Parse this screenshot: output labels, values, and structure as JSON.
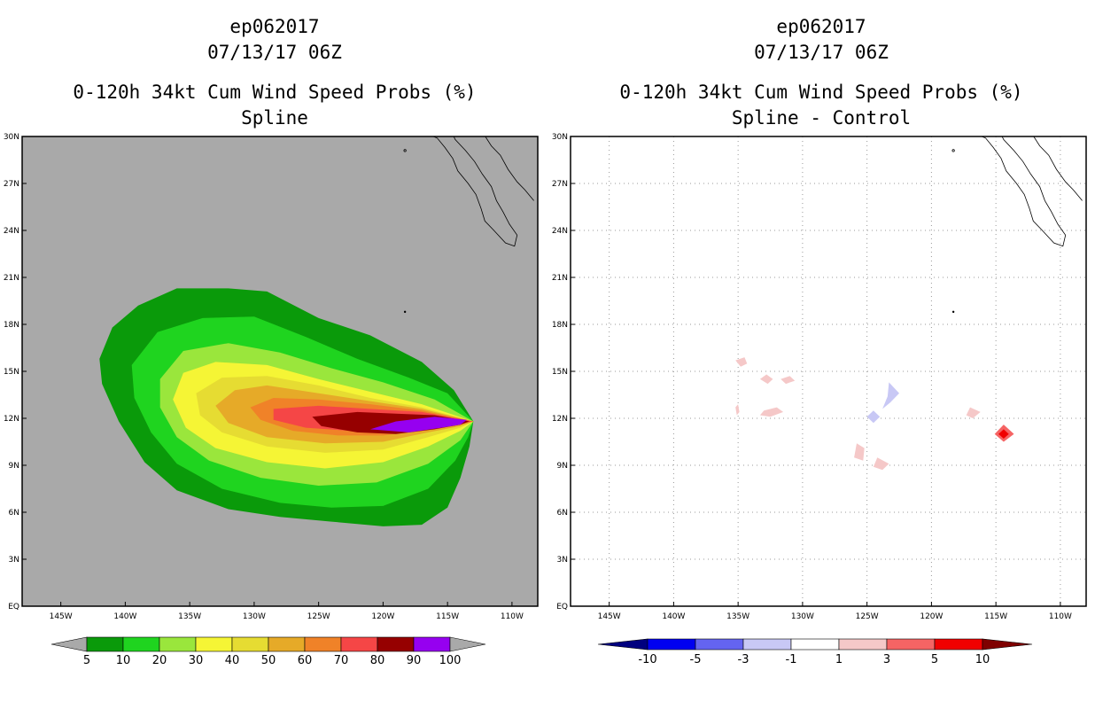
{
  "left_panel": {
    "title_line1": "ep062017",
    "title_line2": "07/13/17 06Z",
    "title_line3": "0-120h 34kt Cum Wind Speed Probs (%)",
    "title_line4": "Spline"
  },
  "right_panel": {
    "title_line1": "ep062017",
    "title_line2": "07/13/17 06Z",
    "title_line3": "0-120h 34kt Cum Wind Speed Probs (%)",
    "title_line4": "Spline - Control"
  },
  "chart_data": [
    {
      "type": "heatmap",
      "title": "0-120h 34kt Cum Wind Speed Probs (%) - Spline",
      "storm": "ep062017",
      "time": "07/13/17 06Z",
      "x_tick_labels": [
        "145W",
        "140W",
        "135W",
        "130W",
        "125W",
        "120W",
        "115W",
        "110W"
      ],
      "y_tick_labels": [
        "EQ",
        "3N",
        "6N",
        "9N",
        "12N",
        "15N",
        "18N",
        "21N",
        "24N",
        "27N",
        "30N"
      ],
      "xlim_deg_east": [
        -148,
        -108
      ],
      "ylim_deg_north": [
        0,
        30
      ],
      "grid": false,
      "background_color": "#a9a9a9",
      "levels": [
        5,
        10,
        20,
        30,
        40,
        50,
        60,
        70,
        80,
        90,
        100
      ],
      "level_labels": [
        "5",
        "10",
        "20",
        "30",
        "40",
        "50",
        "60",
        "70",
        "80",
        "90",
        "100"
      ],
      "colors": [
        "#0a9a0a",
        "#1fd41f",
        "#9ae63c",
        "#f5f535",
        "#e6dc32",
        "#e6aa28",
        "#f08228",
        "#f54646",
        "#960000",
        "#9600f0"
      ],
      "contours": [
        {
          "level": 5,
          "color": "#0a9a0a",
          "points": [
            [
              -113,
              11.8
            ],
            [
              -114.5,
              13.8
            ],
            [
              -117,
              15.6
            ],
            [
              -121,
              17.3
            ],
            [
              -125,
              18.4
            ],
            [
              -129,
              20.1
            ],
            [
              -132,
              20.3
            ],
            [
              -136,
              20.3
            ],
            [
              -139,
              19.2
            ],
            [
              -141,
              17.8
            ],
            [
              -142,
              15.8
            ],
            [
              -141.8,
              14.2
            ],
            [
              -140.5,
              11.8
            ],
            [
              -138.5,
              9.2
            ],
            [
              -136,
              7.4
            ],
            [
              -132,
              6.2
            ],
            [
              -128,
              5.7
            ],
            [
              -124,
              5.4
            ],
            [
              -120,
              5.1
            ],
            [
              -117,
              5.2
            ],
            [
              -115,
              6.3
            ],
            [
              -114,
              8.2
            ],
            [
              -113.3,
              10.2
            ]
          ]
        },
        {
          "level": 10,
          "color": "#1fd41f",
          "points": [
            [
              -113,
              11.8
            ],
            [
              -115,
              13.6
            ],
            [
              -118,
              14.6
            ],
            [
              -122,
              15.8
            ],
            [
              -126,
              17.2
            ],
            [
              -130,
              18.5
            ],
            [
              -134,
              18.4
            ],
            [
              -137.5,
              17.5
            ],
            [
              -139.5,
              15.4
            ],
            [
              -139.3,
              13.3
            ],
            [
              -138,
              11.1
            ],
            [
              -136,
              9.1
            ],
            [
              -132.5,
              7.5
            ],
            [
              -128,
              6.6
            ],
            [
              -124,
              6.3
            ],
            [
              -120,
              6.4
            ],
            [
              -116.5,
              7.5
            ],
            [
              -114.4,
              9.3
            ],
            [
              -113.4,
              10.8
            ]
          ]
        },
        {
          "level": 20,
          "color": "#9ae63c",
          "points": [
            [
              -113,
              11.8
            ],
            [
              -116,
              13.2
            ],
            [
              -120,
              14.3
            ],
            [
              -124,
              15.2
            ],
            [
              -128,
              16.2
            ],
            [
              -132,
              16.8
            ],
            [
              -135.5,
              16.3
            ],
            [
              -137.3,
              14.5
            ],
            [
              -137.3,
              12.7
            ],
            [
              -136,
              10.8
            ],
            [
              -133.5,
              9.3
            ],
            [
              -129.5,
              8.2
            ],
            [
              -125,
              7.7
            ],
            [
              -120.5,
              7.9
            ],
            [
              -116.5,
              9.1
            ],
            [
              -114,
              10.6
            ]
          ]
        },
        {
          "level": 30,
          "color": "#f5f535",
          "points": [
            [
              -113,
              11.8
            ],
            [
              -117,
              12.9
            ],
            [
              -121,
              13.7
            ],
            [
              -125,
              14.5
            ],
            [
              -129,
              15.4
            ],
            [
              -133,
              15.6
            ],
            [
              -135.5,
              14.9
            ],
            [
              -136.3,
              13.2
            ],
            [
              -135.3,
              11.4
            ],
            [
              -133,
              10.1
            ],
            [
              -129,
              9.2
            ],
            [
              -124.5,
              8.8
            ],
            [
              -120,
              9.2
            ],
            [
              -116.5,
              10.2
            ],
            [
              -114,
              11.2
            ]
          ]
        },
        {
          "level": 40,
          "color": "#e6dc32",
          "points": [
            [
              -113,
              11.8
            ],
            [
              -117,
              12.7
            ],
            [
              -121,
              13.3
            ],
            [
              -125,
              14.1
            ],
            [
              -129,
              14.7
            ],
            [
              -132.5,
              14.6
            ],
            [
              -134.5,
              13.6
            ],
            [
              -134.2,
              12.2
            ],
            [
              -132.5,
              11.1
            ],
            [
              -129,
              10.2
            ],
            [
              -124.5,
              9.8
            ],
            [
              -120,
              10
            ],
            [
              -116.5,
              10.8
            ],
            [
              -114,
              11.4
            ]
          ]
        },
        {
          "level": 50,
          "color": "#e6aa28",
          "points": [
            [
              -113,
              11.8
            ],
            [
              -117,
              12.6
            ],
            [
              -121,
              13.1
            ],
            [
              -125,
              13.6
            ],
            [
              -129,
              14.1
            ],
            [
              -131.5,
              13.8
            ],
            [
              -133,
              12.8
            ],
            [
              -132,
              11.7
            ],
            [
              -129,
              10.8
            ],
            [
              -124.5,
              10.4
            ],
            [
              -120,
              10.5
            ],
            [
              -116.5,
              11.1
            ],
            [
              -114,
              11.5
            ]
          ]
        },
        {
          "level": 60,
          "color": "#f08228",
          "points": [
            [
              -113,
              11.8
            ],
            [
              -117,
              12.5
            ],
            [
              -121,
              12.9
            ],
            [
              -125,
              13.2
            ],
            [
              -128.5,
              13.3
            ],
            [
              -130.3,
              12.7
            ],
            [
              -129.5,
              11.9
            ],
            [
              -127,
              11.2
            ],
            [
              -123.5,
              10.9
            ],
            [
              -120,
              10.9
            ],
            [
              -116.5,
              11.3
            ],
            [
              -114,
              11.6
            ]
          ]
        },
        {
          "level": 70,
          "color": "#f54646",
          "points": [
            [
              -113,
              11.8
            ],
            [
              -117,
              12.4
            ],
            [
              -121,
              12.6
            ],
            [
              -125,
              12.8
            ],
            [
              -128.5,
              12.6
            ],
            [
              -128.5,
              11.9
            ],
            [
              -126,
              11.4
            ],
            [
              -122.5,
              11.2
            ],
            [
              -119,
              11.2
            ],
            [
              -116,
              11.5
            ],
            [
              -114,
              11.7
            ]
          ]
        },
        {
          "level": 80,
          "color": "#960000",
          "points": [
            [
              -113.3,
              11.8
            ],
            [
              -116,
              12.2
            ],
            [
              -119,
              12.3
            ],
            [
              -122,
              12.4
            ],
            [
              -125.5,
              12.1
            ],
            [
              -124.8,
              11.5
            ],
            [
              -122,
              11.1
            ],
            [
              -119,
              11
            ],
            [
              -116,
              11.3
            ],
            [
              -114,
              11.6
            ]
          ]
        },
        {
          "level": 90,
          "color": "#9600f0",
          "points": [
            [
              -113.5,
              11.9
            ],
            [
              -116,
              12.1
            ],
            [
              -119,
              11.8
            ],
            [
              -121,
              11.3
            ],
            [
              -118,
              11.1
            ],
            [
              -115.5,
              11.4
            ],
            [
              -114,
              11.6
            ]
          ]
        }
      ]
    },
    {
      "type": "heatmap",
      "title": "0-120h 34kt Cum Wind Speed Probs (%) - Spline - Control",
      "storm": "ep062017",
      "time": "07/13/17 06Z",
      "x_tick_labels": [
        "145W",
        "140W",
        "135W",
        "130W",
        "125W",
        "120W",
        "115W",
        "110W"
      ],
      "y_tick_labels": [
        "EQ",
        "3N",
        "6N",
        "9N",
        "12N",
        "15N",
        "18N",
        "21N",
        "24N",
        "27N",
        "30N"
      ],
      "xlim_deg_east": [
        -148,
        -108
      ],
      "ylim_deg_north": [
        0,
        30
      ],
      "grid": true,
      "background_color": "#ffffff",
      "levels": [
        -10,
        -5,
        -3,
        -1,
        1,
        3,
        5,
        10
      ],
      "level_labels": [
        "-10",
        "-5",
        "-3",
        "-1",
        "1",
        "3",
        "5",
        "10"
      ],
      "colors": [
        "#00007f",
        "#0000f0",
        "#6464f0",
        "#c8c8f5",
        "#ffffff",
        "#f5c8c8",
        "#f56464",
        "#f00000",
        "#7f0000"
      ],
      "difference_patches": [
        {
          "sign": "positive",
          "color": "#f5c8c8",
          "points": [
            [
              -135.2,
              15.7
            ],
            [
              -134.5,
              15.9
            ],
            [
              -134.3,
              15.5
            ],
            [
              -134.8,
              15.3
            ]
          ]
        },
        {
          "sign": "positive",
          "color": "#f5c8c8",
          "points": [
            [
              -133.3,
              14.5
            ],
            [
              -132.8,
              14.8
            ],
            [
              -132.3,
              14.5
            ],
            [
              -132.7,
              14.2
            ]
          ]
        },
        {
          "sign": "positive",
          "color": "#f5c8c8",
          "points": [
            [
              -131.7,
              14.5
            ],
            [
              -131,
              14.7
            ],
            [
              -130.6,
              14.4
            ],
            [
              -131.3,
              14.2
            ]
          ]
        },
        {
          "sign": "positive",
          "color": "#f5c8c8",
          "points": [
            [
              -133,
              12.5
            ],
            [
              -132,
              12.7
            ],
            [
              -131.5,
              12.4
            ],
            [
              -132.5,
              12.1
            ],
            [
              -133.3,
              12.2
            ]
          ]
        },
        {
          "sign": "positive",
          "color": "#f5c8c8",
          "points": [
            [
              -135.2,
              12.7
            ],
            [
              -135,
              12.9
            ],
            [
              -134.9,
              12.4
            ],
            [
              -135.1,
              12.2
            ]
          ]
        },
        {
          "sign": "negative",
          "color": "#c8c8f5",
          "points": [
            [
              -123.3,
              14.3
            ],
            [
              -122.5,
              13.6
            ],
            [
              -123.2,
              13
            ],
            [
              -123.8,
              12.6
            ],
            [
              -123.4,
              13.4
            ]
          ]
        },
        {
          "sign": "negative",
          "color": "#c8c8f5",
          "points": [
            [
              -124.5,
              12.5
            ],
            [
              -124,
              12.1
            ],
            [
              -124.5,
              11.7
            ],
            [
              -125,
              12.1
            ]
          ]
        },
        {
          "sign": "positive",
          "color": "#f5c8c8",
          "points": [
            [
              -125.8,
              10.4
            ],
            [
              -125.2,
              10.1
            ],
            [
              -125.3,
              9.3
            ],
            [
              -126,
              9.5
            ]
          ]
        },
        {
          "sign": "positive",
          "color": "#f5c8c8",
          "points": [
            [
              -124.2,
              9.5
            ],
            [
              -123.3,
              9.1
            ],
            [
              -123.8,
              8.7
            ],
            [
              -124.5,
              8.9
            ]
          ]
        },
        {
          "sign": "positive",
          "color": "#f5c8c8",
          "points": [
            [
              -117,
              12.7
            ],
            [
              -116.2,
              12.4
            ],
            [
              -116.8,
              12
            ],
            [
              -117.3,
              12.2
            ]
          ]
        },
        {
          "sign": "positive",
          "color": "#f56464",
          "points": [
            [
              -114.4,
              11.6
            ],
            [
              -113.6,
              11
            ],
            [
              -114.4,
              10.5
            ],
            [
              -115.1,
              11
            ]
          ]
        },
        {
          "sign": "positive",
          "color": "#f00000",
          "points": [
            [
              -114.4,
              11.3
            ],
            [
              -114,
              11
            ],
            [
              -114.4,
              10.7
            ],
            [
              -114.8,
              11
            ]
          ]
        }
      ]
    }
  ]
}
